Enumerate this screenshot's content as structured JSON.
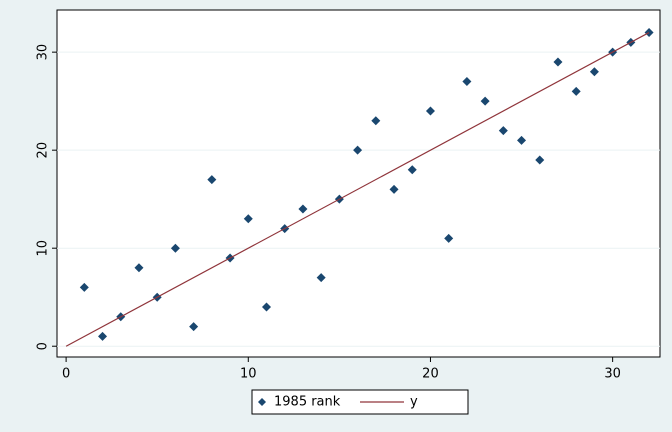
{
  "chart_data": {
    "type": "scatter",
    "series": [
      {
        "name": "1985 rank",
        "color": "#1a476f",
        "marker": "diamond",
        "x": [
          1,
          2,
          3,
          4,
          5,
          6,
          7,
          8,
          9,
          10,
          11,
          12,
          13,
          14,
          15,
          16,
          17,
          18,
          19,
          20,
          21,
          22,
          23,
          24,
          25,
          26,
          27,
          28,
          29,
          30,
          31,
          32
        ],
        "values": [
          6,
          1,
          3,
          8,
          5,
          10,
          2,
          17,
          9,
          13,
          4,
          12,
          14,
          7,
          15,
          20,
          23,
          16,
          18,
          24,
          11,
          27,
          25,
          22,
          21,
          19,
          29,
          26,
          28,
          30,
          31,
          32
        ]
      },
      {
        "name": "y",
        "color": "#90353b",
        "marker": "line",
        "x": [
          0,
          32
        ],
        "values": [
          0,
          32
        ]
      }
    ],
    "xlim": [
      -0.5,
      32.6
    ],
    "ylim": [
      -1.1,
      34.3
    ],
    "xticks": [
      0,
      10,
      20,
      30
    ],
    "yticks": [
      0,
      10,
      20,
      30
    ],
    "grid": true,
    "legend": "bottom"
  }
}
